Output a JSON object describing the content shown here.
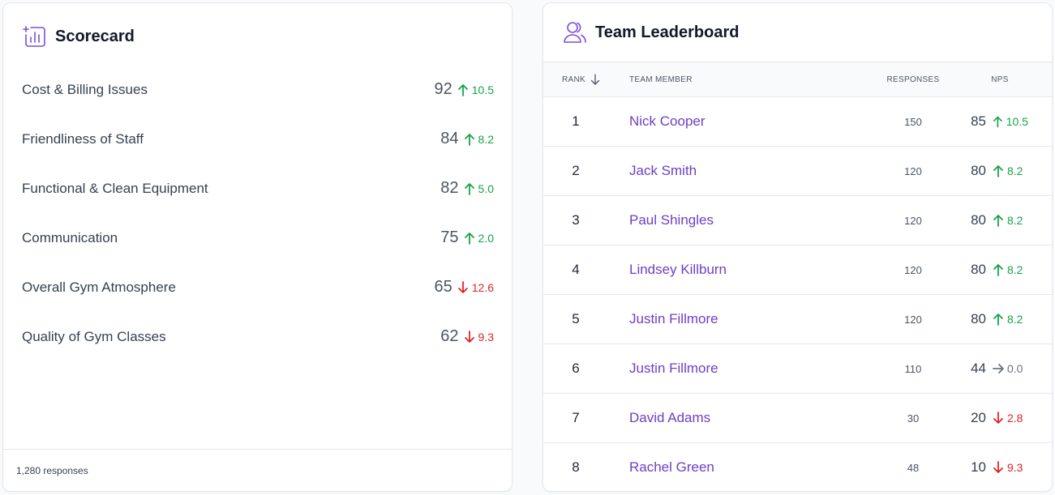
{
  "scorecard": {
    "title": "Scorecard",
    "icon": "chart-plus-icon",
    "metrics": [
      {
        "label": "Cost & Billing Issues",
        "score": "92",
        "delta": "10.5",
        "trend": "up"
      },
      {
        "label": "Friendliness of Staff",
        "score": "84",
        "delta": "8.2",
        "trend": "up"
      },
      {
        "label": "Functional & Clean Equipment",
        "score": "82",
        "delta": "5.0",
        "trend": "up"
      },
      {
        "label": "Communication",
        "score": "75",
        "delta": "2.0",
        "trend": "up"
      },
      {
        "label": "Overall Gym Atmosphere",
        "score": "65",
        "delta": "12.6",
        "trend": "down"
      },
      {
        "label": "Quality of Gym Classes",
        "score": "62",
        "delta": "9.3",
        "trend": "down"
      }
    ],
    "footer": "1,280 responses"
  },
  "leaderboard": {
    "title": "Team Leaderboard",
    "icon": "users-icon",
    "columns": {
      "rank": "RANK",
      "member": "TEAM MEMBER",
      "responses": "RESPONSES",
      "nps": "NPS"
    },
    "rows": [
      {
        "rank": "1",
        "member": "Nick Cooper",
        "responses": "150",
        "nps": "85",
        "delta": "10.5",
        "trend": "up"
      },
      {
        "rank": "2",
        "member": "Jack Smith",
        "responses": "120",
        "nps": "80",
        "delta": "8.2",
        "trend": "up"
      },
      {
        "rank": "3",
        "member": "Paul Shingles",
        "responses": "120",
        "nps": "80",
        "delta": "8.2",
        "trend": "up"
      },
      {
        "rank": "4",
        "member": "Lindsey Killburn",
        "responses": "120",
        "nps": "80",
        "delta": "8.2",
        "trend": "up"
      },
      {
        "rank": "5",
        "member": "Justin Fillmore",
        "responses": "120",
        "nps": "80",
        "delta": "8.2",
        "trend": "up"
      },
      {
        "rank": "6",
        "member": "Justin Fillmore",
        "responses": "110",
        "nps": "44",
        "delta": "0.0",
        "trend": "flat"
      },
      {
        "rank": "7",
        "member": "David Adams",
        "responses": "30",
        "nps": "20",
        "delta": "2.8",
        "trend": "down"
      },
      {
        "rank": "8",
        "member": "Rachel Green",
        "responses": "48",
        "nps": "10",
        "delta": "9.3",
        "trend": "down"
      }
    ]
  },
  "colors": {
    "accent": "#7c4ddb",
    "up": "#16a34a",
    "down": "#dc2626",
    "flat": "#6b7280"
  }
}
